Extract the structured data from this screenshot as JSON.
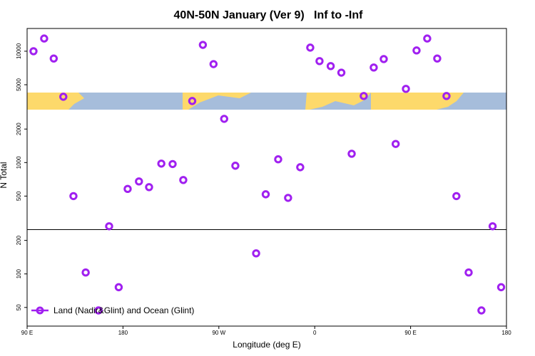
{
  "chart_data": {
    "type": "scatter",
    "title": "40N-50N January (Ver 9)   Inf to -Inf",
    "xlabel": "Longitude (deg E)",
    "ylabel": "N Total",
    "log_y": true,
    "hline": 250,
    "legend": "bottom-left",
    "xlim": [
      90,
      540
    ],
    "ylim": [
      34,
      16000
    ],
    "xticks": [
      {
        "value": 90,
        "label": "90 E"
      },
      {
        "value": 180,
        "label": "180"
      },
      {
        "value": 270,
        "label": "90 W"
      },
      {
        "value": 360,
        "label": "0"
      },
      {
        "value": 450,
        "label": "90 E"
      },
      {
        "value": 540,
        "label": "180"
      }
    ],
    "yticks": [
      50,
      100,
      200,
      500,
      1000,
      2000,
      5000,
      10000
    ],
    "x": [
      96,
      106,
      115,
      124,
      133.5,
      145,
      157,
      167,
      176,
      184.4,
      195,
      204.5,
      216,
      226.6,
      236.6,
      245,
      255,
      265,
      275,
      285.5,
      305,
      314,
      325.7,
      335,
      346.4,
      355.8,
      364.5,
      375,
      385,
      394.7,
      406,
      415.4,
      424.8,
      436,
      445.6,
      455.6,
      465.6,
      475,
      483.7,
      493,
      504.5,
      516.5,
      527,
      535
    ],
    "series": [
      {
        "name": "Land (Nadir&Glint) and Ocean (Glint)",
        "color": "#a020f0",
        "values": [
          10000,
          13000,
          8600,
          3900,
          500,
          103,
          47,
          268,
          76,
          580,
          677,
          602,
          979,
          970,
          697,
          3570,
          11400,
          7660,
          2470,
          937,
          153,
          519,
          1070,
          482,
          908,
          10770,
          8150,
          7350,
          6420,
          1200,
          3960,
          7140,
          8500,
          1470,
          4590,
          10160,
          13000,
          8600,
          3960,
          500,
          103,
          47,
          268,
          76
        ]
      }
    ]
  }
}
